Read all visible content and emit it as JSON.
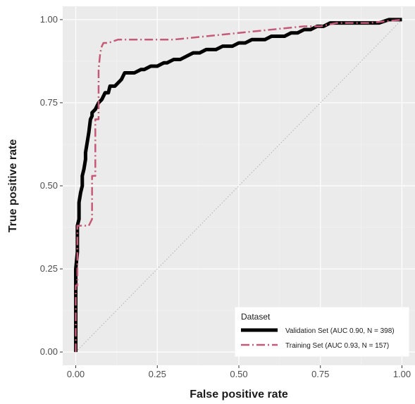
{
  "chart_data": {
    "type": "line",
    "title": "",
    "xlabel": "False positive rate",
    "ylabel": "True positive rate",
    "xlim": [
      -0.04,
      1.04
    ],
    "ylim": [
      -0.04,
      1.04
    ],
    "xticks": [
      0.0,
      0.25,
      0.5,
      0.75,
      1.0
    ],
    "xtick_labels": [
      "0.00",
      "0.25",
      "0.50",
      "0.75",
      "1.00"
    ],
    "yticks": [
      0.0,
      0.25,
      0.5,
      0.75,
      1.0
    ],
    "ytick_labels": [
      "0.00",
      "0.25",
      "0.50",
      "0.75",
      "1.00"
    ],
    "grid": true,
    "legend": {
      "title": "Dataset",
      "placement": "bottom-right"
    },
    "series": [
      {
        "name": "Validation Set (AUC 0.90, N = 398)",
        "style": "solid",
        "color": "#000000",
        "x": [
          0,
          0,
          0.005,
          0.005,
          0.01,
          0.01,
          0.015,
          0.02,
          0.02,
          0.025,
          0.03,
          0.03,
          0.035,
          0.04,
          0.045,
          0.05,
          0.05,
          0.06,
          0.065,
          0.07,
          0.08,
          0.09,
          0.1,
          0.105,
          0.12,
          0.13,
          0.14,
          0.15,
          0.17,
          0.18,
          0.2,
          0.21,
          0.23,
          0.25,
          0.27,
          0.28,
          0.3,
          0.32,
          0.34,
          0.36,
          0.38,
          0.4,
          0.43,
          0.45,
          0.48,
          0.5,
          0.52,
          0.54,
          0.56,
          0.58,
          0.6,
          0.62,
          0.64,
          0.66,
          0.68,
          0.7,
          0.72,
          0.74,
          0.76,
          0.78,
          0.8,
          0.82,
          0.85,
          0.88,
          0.9,
          0.93,
          0.96,
          1.0
        ],
        "y": [
          0,
          0.25,
          0.3,
          0.38,
          0.4,
          0.45,
          0.48,
          0.5,
          0.53,
          0.55,
          0.58,
          0.6,
          0.63,
          0.66,
          0.7,
          0.71,
          0.72,
          0.73,
          0.74,
          0.75,
          0.76,
          0.78,
          0.78,
          0.8,
          0.8,
          0.81,
          0.82,
          0.84,
          0.84,
          0.84,
          0.85,
          0.85,
          0.86,
          0.86,
          0.87,
          0.87,
          0.88,
          0.88,
          0.89,
          0.9,
          0.9,
          0.91,
          0.91,
          0.92,
          0.92,
          0.93,
          0.93,
          0.94,
          0.94,
          0.94,
          0.95,
          0.95,
          0.95,
          0.96,
          0.96,
          0.97,
          0.97,
          0.98,
          0.98,
          0.99,
          0.99,
          0.99,
          0.99,
          0.99,
          0.99,
          0.99,
          1.0,
          1.0
        ]
      },
      {
        "name": "Training Set (AUC 0.93, N = 157)",
        "style": "dashdot",
        "color": "#c45a78",
        "x": [
          0,
          0,
          0.005,
          0.005,
          0.04,
          0.05,
          0.05,
          0.06,
          0.06,
          0.07,
          0.07,
          0.075,
          0.08,
          0.085,
          0.09,
          0.1,
          0.13,
          0.2,
          0.3,
          0.4,
          0.5,
          0.6,
          0.7,
          0.75,
          0.8,
          0.9,
          1.0
        ],
        "y": [
          0,
          0.2,
          0.2,
          0.38,
          0.38,
          0.4,
          0.53,
          0.53,
          0.7,
          0.7,
          0.85,
          0.9,
          0.92,
          0.93,
          0.93,
          0.93,
          0.94,
          0.94,
          0.94,
          0.95,
          0.96,
          0.97,
          0.98,
          0.98,
          0.99,
          0.99,
          1.0
        ]
      },
      {
        "name": "",
        "style": "dotted",
        "color": "#b0b0b0",
        "x": [
          0,
          1
        ],
        "y": [
          0,
          1
        ]
      }
    ]
  }
}
